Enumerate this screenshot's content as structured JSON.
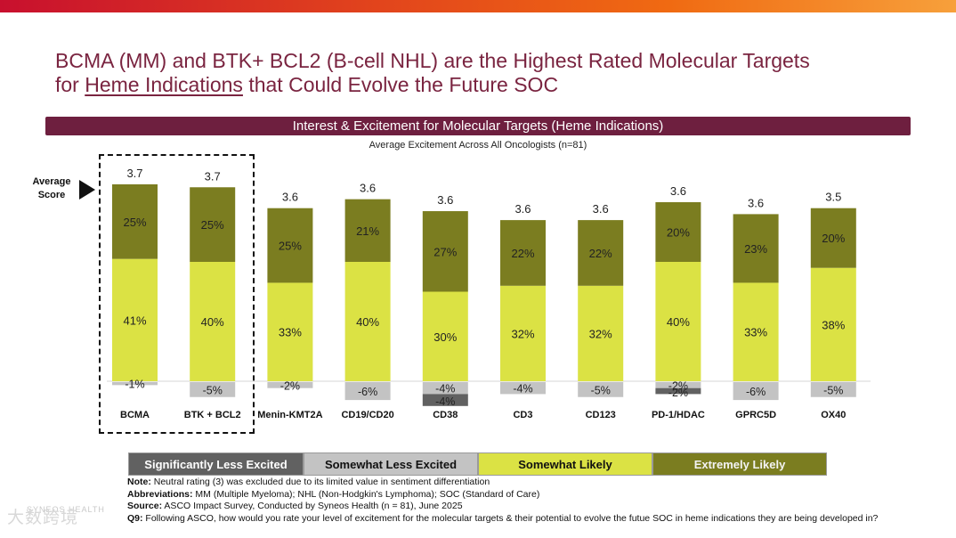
{
  "header": {
    "title_line1": "BCMA (MM) and BTK+ BCL2 (B-cell NHL) are the Highest Rated Molecular Targets",
    "title_line2_pre": "for ",
    "title_line2_ul": "Heme Indications",
    "title_line2_post": " that Could Evolve the Future SOC"
  },
  "banner": "Interest & Excitement for Molecular Targets (Heme Indications)",
  "subtitle": "Average Excitement Across All Oncologists (n=81)",
  "average_score_label": "Average Score",
  "colors": {
    "sig_less": "#616161",
    "somewhat_less": "#c3c3c3",
    "somewhat_likely": "#dbe244",
    "extremely_likely": "#7b7d20",
    "title": "#7a2440",
    "banner": "#6e1f3f"
  },
  "legend": [
    {
      "label": "Significantly Less Excited",
      "key": "sig_less"
    },
    {
      "label": "Somewhat Less Excited",
      "key": "somewhat_less"
    },
    {
      "label": "Somewhat Likely",
      "key": "somewhat_likely"
    },
    {
      "label": "Extremely Likely",
      "key": "extremely_likely"
    }
  ],
  "chart_data": {
    "type": "bar",
    "stacked": true,
    "title": "Interest & Excitement for Molecular Targets (Heme Indications)",
    "subtitle": "Average Excitement Across All Oncologists (n=81)",
    "categories": [
      "BCMA",
      "BTK + BCL2",
      "Menin-KMT2A",
      "CD19/CD20",
      "CD38",
      "CD3",
      "CD123",
      "PD-1/HDAC",
      "GPRC5D",
      "OX40"
    ],
    "average_scores": [
      "3.7",
      "3.7",
      "3.6",
      "3.6",
      "3.6",
      "3.6",
      "3.6",
      "3.6",
      "3.6",
      "3.5"
    ],
    "series": [
      {
        "name": "Somewhat Likely",
        "key": "somewhat_likely",
        "values": [
          41,
          40,
          33,
          40,
          30,
          32,
          32,
          40,
          33,
          38
        ],
        "labels": [
          "41%",
          "40%",
          "33%",
          "40%",
          "30%",
          "32%",
          "32%",
          "40%",
          "33%",
          "38%"
        ]
      },
      {
        "name": "Extremely Likely",
        "key": "extremely_likely",
        "values": [
          25,
          25,
          25,
          21,
          27,
          22,
          22,
          20,
          23,
          20
        ],
        "labels": [
          "25%",
          "25%",
          "25%",
          "21%",
          "27%",
          "22%",
          "22%",
          "20%",
          "23%",
          "20%"
        ]
      },
      {
        "name": "Somewhat Less Excited",
        "key": "somewhat_less",
        "values": [
          -1,
          -5,
          -2,
          -6,
          -4,
          -4,
          -5,
          -2,
          -6,
          -5
        ],
        "labels": [
          "-1%",
          "-5%",
          "-2%",
          "-6%",
          "-4%",
          "-4%",
          "-5%",
          "-2%",
          "-6%",
          "-5%"
        ]
      },
      {
        "name": "Significantly Less Excited",
        "key": "sig_less",
        "values": [
          0,
          0,
          0,
          0,
          -4,
          0,
          0,
          -2,
          0,
          0
        ],
        "labels": [
          "",
          "",
          "",
          "",
          "-4%",
          "",
          "",
          "-2%",
          "",
          ""
        ]
      }
    ],
    "highlighted": [
      "BCMA",
      "BTK + BCL2"
    ],
    "ylabel": "",
    "ylim": [
      -12,
      70
    ]
  },
  "notes": {
    "note_label": "Note:",
    "note_text": " Neutral rating (3) was excluded due to its limited value in sentiment differentiation",
    "abbr_label": "Abbreviations:",
    "abbr_text": " MM (Multiple Myeloma); NHL (Non-Hodgkin's Lymphoma); SOC (Standard of Care)",
    "source_label": "Source:",
    "source_text": " ASCO Impact Survey, Conducted by Syneos Health (n = 81), June 2025",
    "q_label": "Q9:",
    "q_text": " Following ASCO, how would you rate your level of excitement for the molecular targets & their potential to evolve the futue SOC in heme indications they are being developed in?"
  },
  "watermark": "大数跨境",
  "watermark_small": "SYNEOS HEALTH"
}
